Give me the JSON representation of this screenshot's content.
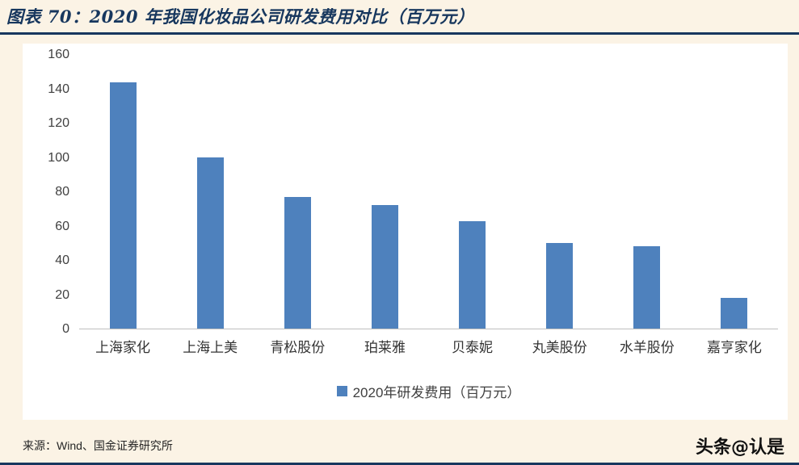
{
  "title": "图表 70：2020 年我国化妆品公司研发费用对比（百万元）",
  "source": "来源：Wind、国金证券研究所",
  "watermark": "头条@认是",
  "colors": {
    "background": "#FBF3E5",
    "accent_navy": "#17375E",
    "bar_blue": "#4E81BD",
    "axis_line": "#BFBFBF",
    "text": "#404040"
  },
  "chart_data": {
    "type": "bar",
    "title": "2020 年我国化妆品公司研发费用对比（百万元）",
    "categories": [
      "上海家化",
      "上海上美",
      "青松股份",
      "珀莱雅",
      "贝泰妮",
      "丸美股份",
      "水羊股份",
      "嘉亨家化"
    ],
    "values": [
      144,
      100,
      77,
      72,
      63,
      50,
      48,
      18
    ],
    "legend": "2020年研发费用（百万元）",
    "legend_position": "bottom",
    "xlabel": "",
    "ylabel": "",
    "ylim": [
      0,
      160
    ],
    "ytick_step": 20,
    "yticks": [
      0,
      20,
      40,
      60,
      80,
      100,
      120,
      140,
      160
    ],
    "grid": false
  }
}
